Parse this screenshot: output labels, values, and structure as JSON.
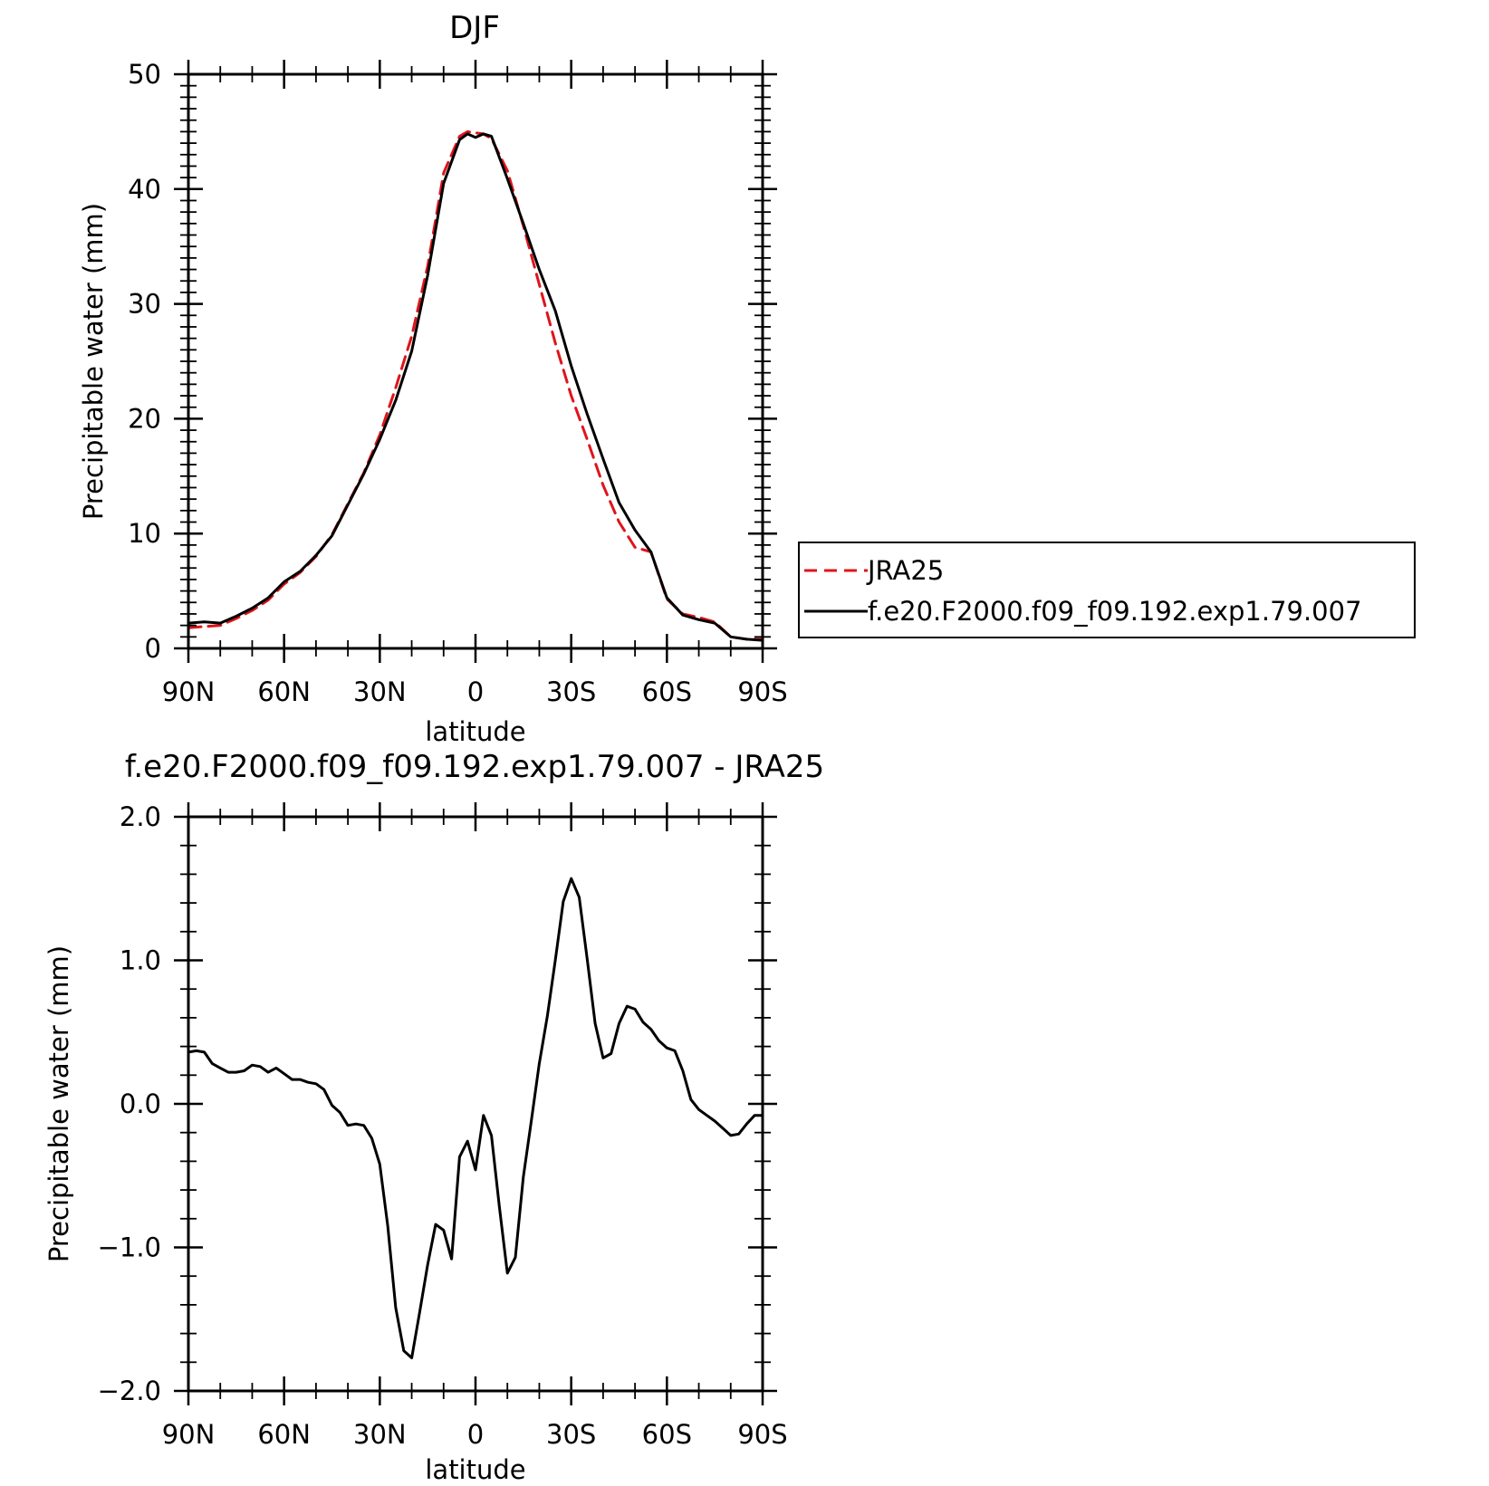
{
  "chart_data": [
    {
      "type": "line",
      "title": "DJF",
      "ylabel": "Precipitable water (mm)",
      "xlabel": "latitude",
      "xlim": [
        90,
        -90
      ],
      "ylim": [
        0,
        50
      ],
      "xticks": [
        90,
        60,
        30,
        0,
        -30,
        -60,
        -90
      ],
      "xtick_labels": [
        "90N",
        "60N",
        "30N",
        "0",
        "30S",
        "60S",
        "90S"
      ],
      "yticks": [
        0,
        10,
        20,
        30,
        40,
        50
      ],
      "ytick_labels": [
        "0",
        "10",
        "20",
        "30",
        "40",
        "50"
      ],
      "legend_position": "right",
      "series": [
        {
          "name": "JRA25",
          "color": "#e0141b",
          "dash": "dashed",
          "x": [
            90,
            85,
            80,
            75,
            70,
            65,
            60,
            55,
            50,
            45,
            40,
            35,
            30,
            25,
            20,
            15,
            10,
            5,
            2.5,
            0,
            -2.5,
            -5,
            -10,
            -15,
            -20,
            -25,
            -30,
            -35,
            -40,
            -45,
            -50,
            -55,
            -60,
            -65,
            -70,
            -75,
            -80,
            -85,
            -90
          ],
          "y": [
            1.8,
            1.9,
            2.0,
            2.6,
            3.3,
            4.2,
            5.6,
            6.6,
            8.0,
            9.9,
            12.6,
            15.3,
            18.6,
            22.7,
            27.2,
            33.3,
            41.4,
            44.6,
            45.0,
            44.9,
            44.8,
            44.4,
            41.6,
            36.8,
            31.7,
            26.6,
            22.0,
            18.2,
            14.2,
            11.0,
            8.8,
            8.4,
            4.3,
            3.0,
            2.7,
            2.3,
            1.0,
            0.8,
            0.8
          ]
        },
        {
          "name": "f.e20.F2000.f09_f09.192.exp1.79.007",
          "color": "#000000",
          "dash": "solid",
          "x": [
            90,
            85,
            80,
            75,
            70,
            65,
            60,
            55,
            50,
            45,
            40,
            35,
            30,
            25,
            20,
            15,
            10,
            5,
            2.5,
            0,
            -2.5,
            -5,
            -10,
            -15,
            -20,
            -25,
            -30,
            -35,
            -40,
            -45,
            -50,
            -55,
            -60,
            -65,
            -70,
            -75,
            -80,
            -85,
            -90
          ],
          "y": [
            2.2,
            2.3,
            2.2,
            2.8,
            3.5,
            4.4,
            5.8,
            6.7,
            8.1,
            9.8,
            12.5,
            15.2,
            18.2,
            21.6,
            25.9,
            32.5,
            40.5,
            44.3,
            44.8,
            44.5,
            44.8,
            44.6,
            40.9,
            37.0,
            33.0,
            29.4,
            24.6,
            20.4,
            16.5,
            12.7,
            10.3,
            8.4,
            4.4,
            2.9,
            2.5,
            2.2,
            1.0,
            0.8,
            0.7
          ]
        }
      ]
    },
    {
      "type": "line",
      "title": "f.e20.F2000.f09_f09.192.exp1.79.007 - JRA25",
      "ylabel": "Precipitable water (mm)",
      "xlabel": "latitude",
      "xlim": [
        90,
        -90
      ],
      "ylim": [
        -2.0,
        2.0
      ],
      "xticks": [
        90,
        60,
        30,
        0,
        -30,
        -60,
        -90
      ],
      "xtick_labels": [
        "90N",
        "60N",
        "30N",
        "0",
        "30S",
        "60S",
        "90S"
      ],
      "yticks": [
        -2.0,
        -1.0,
        0.0,
        1.0,
        2.0
      ],
      "ytick_labels": [
        "-2.0",
        "-1.0",
        "0.0",
        "1.0",
        "2.0"
      ],
      "series": [
        {
          "color": "#000000",
          "dash": "solid",
          "x": [
            90,
            87.5,
            85,
            82.5,
            80,
            77.5,
            75,
            72.5,
            70,
            67.5,
            65,
            62.5,
            60,
            57.5,
            55,
            52.5,
            50,
            47.5,
            45,
            42.5,
            40,
            37.5,
            35,
            32.5,
            30,
            27.5,
            25,
            22.5,
            20,
            17.5,
            15,
            12.5,
            10,
            7.5,
            5,
            2.5,
            0,
            -2.5,
            -5,
            -7.5,
            -10,
            -12.5,
            -15,
            -17.5,
            -20,
            -22.5,
            -25,
            -27.5,
            -30,
            -32.5,
            -35,
            -37.5,
            -40,
            -42.5,
            -45,
            -47.5,
            -50,
            -52.5,
            -55,
            -57.5,
            -60,
            -62.5,
            -65,
            -67.5,
            -70,
            -72.5,
            -75,
            -77.5,
            -80,
            -82.5,
            -85,
            -87.5,
            -90
          ],
          "y": [
            0.36,
            0.37,
            0.36,
            0.28,
            0.25,
            0.22,
            0.22,
            0.23,
            0.27,
            0.26,
            0.22,
            0.25,
            0.21,
            0.17,
            0.17,
            0.15,
            0.14,
            0.1,
            -0.01,
            -0.06,
            -0.15,
            -0.14,
            -0.15,
            -0.24,
            -0.42,
            -0.85,
            -1.42,
            -1.72,
            -1.77,
            -1.45,
            -1.12,
            -0.84,
            -0.88,
            -1.08,
            -0.37,
            -0.26,
            -0.46,
            -0.08,
            -0.22,
            -0.72,
            -1.18,
            -1.07,
            -0.51,
            -0.12,
            0.28,
            0.61,
            1.0,
            1.41,
            1.57,
            1.44,
            1.01,
            0.56,
            0.32,
            0.35,
            0.56,
            0.68,
            0.66,
            0.57,
            0.52,
            0.44,
            0.39,
            0.37,
            0.23,
            0.03,
            -0.04,
            -0.08,
            -0.12,
            -0.17,
            -0.22,
            -0.21,
            -0.14,
            -0.08,
            -0.08
          ]
        }
      ]
    }
  ]
}
